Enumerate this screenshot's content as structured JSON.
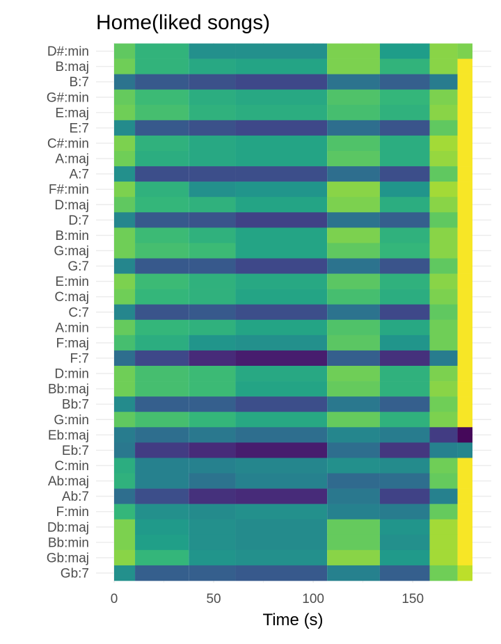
{
  "chart_data": {
    "type": "heatmap",
    "title": "Home(liked songs)",
    "xlabel": "Time (s)",
    "ylabel": "",
    "xlim": [
      0,
      180
    ],
    "x_ticks": [
      0,
      50,
      100,
      150
    ],
    "grid": true,
    "colormap": "viridis",
    "value_range": [
      0,
      1
    ],
    "colors": {
      "viridis": [
        "#440154",
        "#482878",
        "#3e4989",
        "#31688e",
        "#26828e",
        "#1f9e89",
        "#35b779",
        "#6ece58",
        "#b5de2b",
        "#fde725"
      ],
      "grid": "#ebebeb",
      "text": "#000000",
      "tick_text": "#4d4d4d"
    },
    "x_edges": [
      0,
      10.5,
      37.5,
      61,
      107,
      133.5,
      158.5,
      172.5,
      180
    ],
    "y_categories": [
      "D#:min",
      "B:maj",
      "B:7",
      "G#:min",
      "E:maj",
      "E:7",
      "C#:min",
      "A:maj",
      "A:7",
      "F#:min",
      "D:maj",
      "D:7",
      "B:min",
      "G:maj",
      "G:7",
      "E:min",
      "C:maj",
      "C:7",
      "A:min",
      "F:maj",
      "F:7",
      "D:min",
      "Bb:maj",
      "Bb:7",
      "G:min",
      "Eb:maj",
      "Eb:7",
      "C:min",
      "Ab:maj",
      "Ab:7",
      "F:min",
      "Db:maj",
      "Bb:min",
      "Gb:maj",
      "Gb:7"
    ],
    "values": [
      [
        0.75,
        0.65,
        0.5,
        0.5,
        0.8,
        0.55,
        0.82,
        0.8
      ],
      [
        0.78,
        0.65,
        0.6,
        0.58,
        0.8,
        0.65,
        0.82,
        0.99
      ],
      [
        0.38,
        0.28,
        0.25,
        0.22,
        0.38,
        0.3,
        0.42,
        0.99
      ],
      [
        0.76,
        0.68,
        0.62,
        0.6,
        0.72,
        0.66,
        0.8,
        0.99
      ],
      [
        0.78,
        0.7,
        0.64,
        0.62,
        0.7,
        0.64,
        0.82,
        0.99
      ],
      [
        0.48,
        0.28,
        0.25,
        0.22,
        0.36,
        0.26,
        0.75,
        0.99
      ],
      [
        0.8,
        0.64,
        0.6,
        0.58,
        0.72,
        0.62,
        0.86,
        0.99
      ],
      [
        0.78,
        0.62,
        0.6,
        0.58,
        0.74,
        0.62,
        0.84,
        0.99
      ],
      [
        0.5,
        0.24,
        0.24,
        0.24,
        0.36,
        0.24,
        0.75,
        0.99
      ],
      [
        0.8,
        0.64,
        0.5,
        0.52,
        0.82,
        0.52,
        0.86,
        0.99
      ],
      [
        0.75,
        0.66,
        0.64,
        0.58,
        0.8,
        0.62,
        0.82,
        0.99
      ],
      [
        0.46,
        0.28,
        0.26,
        0.2,
        0.38,
        0.3,
        0.75,
        0.99
      ],
      [
        0.78,
        0.68,
        0.64,
        0.58,
        0.8,
        0.64,
        0.82,
        0.99
      ],
      [
        0.78,
        0.7,
        0.68,
        0.58,
        0.75,
        0.66,
        0.82,
        0.99
      ],
      [
        0.46,
        0.28,
        0.28,
        0.22,
        0.38,
        0.26,
        0.75,
        0.99
      ],
      [
        0.8,
        0.68,
        0.64,
        0.6,
        0.74,
        0.64,
        0.82,
        0.99
      ],
      [
        0.78,
        0.66,
        0.64,
        0.58,
        0.7,
        0.62,
        0.8,
        0.99
      ],
      [
        0.46,
        0.26,
        0.28,
        0.24,
        0.38,
        0.22,
        0.75,
        0.99
      ],
      [
        0.76,
        0.66,
        0.64,
        0.58,
        0.72,
        0.6,
        0.78,
        0.99
      ],
      [
        0.7,
        0.62,
        0.52,
        0.5,
        0.74,
        0.52,
        0.78,
        0.99
      ],
      [
        0.36,
        0.22,
        0.12,
        0.08,
        0.3,
        0.14,
        0.42,
        0.99
      ],
      [
        0.78,
        0.7,
        0.68,
        0.6,
        0.78,
        0.64,
        0.8,
        0.99
      ],
      [
        0.78,
        0.7,
        0.68,
        0.58,
        0.76,
        0.64,
        0.82,
        0.99
      ],
      [
        0.48,
        0.3,
        0.3,
        0.24,
        0.4,
        0.3,
        0.78,
        0.99
      ],
      [
        0.75,
        0.7,
        0.66,
        0.6,
        0.76,
        0.64,
        0.8,
        0.99
      ],
      [
        0.42,
        0.36,
        0.4,
        0.36,
        0.46,
        0.42,
        0.18,
        0.02
      ],
      [
        0.4,
        0.18,
        0.12,
        0.08,
        0.36,
        0.16,
        0.44,
        0.46
      ],
      [
        0.62,
        0.44,
        0.44,
        0.46,
        0.5,
        0.48,
        0.78,
        0.99
      ],
      [
        0.64,
        0.44,
        0.38,
        0.44,
        0.34,
        0.36,
        0.76,
        0.99
      ],
      [
        0.36,
        0.24,
        0.14,
        0.12,
        0.4,
        0.2,
        0.44,
        0.99
      ],
      [
        0.66,
        0.5,
        0.48,
        0.5,
        0.44,
        0.42,
        0.76,
        0.99
      ],
      [
        0.8,
        0.54,
        0.5,
        0.48,
        0.76,
        0.52,
        0.86,
        0.99
      ],
      [
        0.8,
        0.56,
        0.5,
        0.48,
        0.76,
        0.5,
        0.86,
        0.99
      ],
      [
        0.82,
        0.66,
        0.52,
        0.5,
        0.82,
        0.54,
        0.86,
        0.99
      ],
      [
        0.5,
        0.3,
        0.3,
        0.28,
        0.44,
        0.3,
        0.78,
        0.9
      ]
    ]
  }
}
